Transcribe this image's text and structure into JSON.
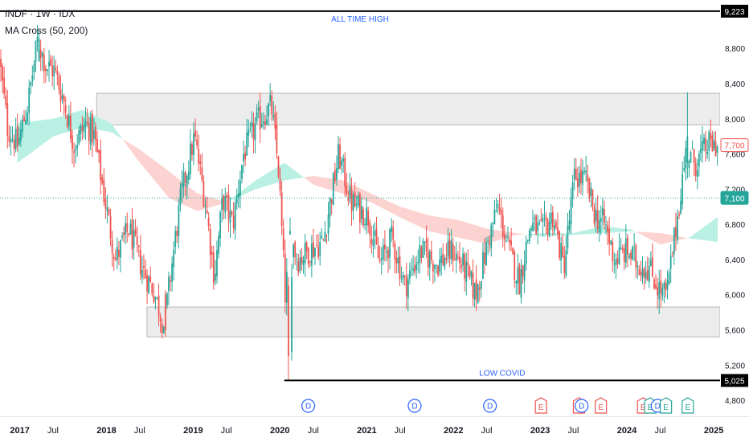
{
  "legend": {
    "symbol_line": "INDF · 1W · IDX",
    "indicator_line": "MA Cross (50, 200)"
  },
  "colors": {
    "up": "#26a69a",
    "down": "#ef5350",
    "ma_bull_fill": "#b9f0e3",
    "ma_bear_fill": "#fcd3d1",
    "zone_fill": "#ececec",
    "annotation_text": "#2962ff",
    "dividend_badge": "#2962ff",
    "earnings_bad": "#ef5350",
    "earnings_good": "#26a69a"
  },
  "chart_data": {
    "type": "candlestick",
    "symbol": "INDF",
    "interval": "1W",
    "exchange": "IDX",
    "ylim": [
      4700,
      9350
    ],
    "yticks": [
      4800,
      5200,
      5600,
      6000,
      6400,
      6800,
      7200,
      7600,
      8000,
      8400,
      8800
    ],
    "ytick_labels": [
      "4,800",
      "5,200",
      "5,600",
      "6,000",
      "6,400",
      "6,800",
      "7,200",
      "7,600",
      "8,000",
      "8,400",
      "8,800"
    ],
    "xlim": [
      "2016-11-20",
      "2025-03-10"
    ],
    "xticks": [
      {
        "label": "2017",
        "date": "2017-01-01"
      },
      {
        "label": "Jul",
        "date": "2017-07-01"
      },
      {
        "label": "2018",
        "date": "2018-01-01"
      },
      {
        "label": "Jul",
        "date": "2018-07-01"
      },
      {
        "label": "2019",
        "date": "2019-01-01"
      },
      {
        "label": "Jul",
        "date": "2019-07-01"
      },
      {
        "label": "2020",
        "date": "2020-01-01"
      },
      {
        "label": "Jul",
        "date": "2020-07-01"
      },
      {
        "label": "2021",
        "date": "2021-01-01"
      },
      {
        "label": "Jul",
        "date": "2021-07-01"
      },
      {
        "label": "2022",
        "date": "2022-01-01"
      },
      {
        "label": "Jul",
        "date": "2022-07-01"
      },
      {
        "label": "2023",
        "date": "2023-01-01"
      },
      {
        "label": "Jul",
        "date": "2023-07-01"
      },
      {
        "label": "2024",
        "date": "2024-01-01"
      },
      {
        "label": "Jul",
        "date": "2024-07-01"
      },
      {
        "label": "2025",
        "date": "2025-01-01"
      }
    ],
    "price_path": [
      [
        "2016-11-20",
        8700
      ],
      [
        "2016-12-25",
        7900
      ],
      [
        "2017-02-05",
        7700
      ],
      [
        "2017-03-20",
        8150
      ],
      [
        "2017-05-01",
        8900
      ],
      [
        "2017-06-05",
        8600
      ],
      [
        "2017-07-10",
        8550
      ],
      [
        "2017-08-20",
        8200
      ],
      [
        "2017-10-01",
        7700
      ],
      [
        "2017-11-20",
        7950
      ],
      [
        "2017-12-25",
        7800
      ],
      [
        "2018-02-10",
        7050
      ],
      [
        "2018-03-25",
        6400
      ],
      [
        "2018-05-20",
        6750
      ],
      [
        "2018-07-15",
        6300
      ],
      [
        "2018-09-01",
        6050
      ],
      [
        "2018-10-15",
        5650
      ],
      [
        "2018-11-20",
        6400
      ],
      [
        "2018-12-25",
        7100
      ],
      [
        "2019-02-20",
        7800
      ],
      [
        "2019-04-10",
        7000
      ],
      [
        "2019-05-15",
        6200
      ],
      [
        "2019-06-20",
        7100
      ],
      [
        "2019-08-01",
        6800
      ],
      [
        "2019-09-15",
        7600
      ],
      [
        "2019-11-10",
        7950
      ],
      [
        "2020-01-10",
        8150
      ],
      [
        "2020-02-10",
        7400
      ],
      [
        "2020-03-10",
        5900
      ],
      [
        "2020-03-25",
        6700
      ],
      [
        "2020-05-01",
        6400
      ],
      [
        "2020-06-15",
        6500
      ],
      [
        "2020-08-15",
        6600
      ],
      [
        "2020-10-20",
        7600
      ],
      [
        "2020-12-10",
        7050
      ],
      [
        "2021-02-20",
        6900
      ],
      [
        "2021-04-10",
        6350
      ],
      [
        "2021-06-01",
        6650
      ],
      [
        "2021-07-25",
        6100
      ],
      [
        "2021-10-01",
        6500
      ],
      [
        "2021-12-10",
        6350
      ],
      [
        "2022-02-10",
        6500
      ],
      [
        "2022-04-01",
        6300
      ],
      [
        "2022-05-20",
        6000
      ],
      [
        "2022-07-10",
        6600
      ],
      [
        "2022-08-20",
        7000
      ],
      [
        "2022-10-01",
        6550
      ],
      [
        "2022-11-20",
        6150
      ],
      [
        "2023-01-05",
        6800
      ],
      [
        "2023-02-20",
        6700
      ],
      [
        "2023-04-10",
        6900
      ],
      [
        "2023-05-25",
        6300
      ],
      [
        "2023-07-10",
        7350
      ],
      [
        "2023-08-25",
        7300
      ],
      [
        "2023-10-05",
        6900
      ],
      [
        "2023-11-15",
        6800
      ],
      [
        "2023-12-25",
        6400
      ],
      [
        "2024-02-15",
        6500
      ],
      [
        "2024-04-01",
        6350
      ],
      [
        "2024-05-20",
        6300
      ],
      [
        "2024-07-01",
        6050
      ],
      [
        "2024-08-01",
        6000
      ],
      [
        "2024-09-15",
        6900
      ],
      [
        "2024-10-20",
        7600
      ],
      [
        "2024-12-01",
        7500
      ],
      [
        "2025-01-20",
        7700
      ],
      [
        "2025-02-28",
        7700
      ]
    ],
    "ma_cross": {
      "name": "MA Cross (50, 200)",
      "fast_period": 50,
      "slow_period": 200,
      "fast_path": [
        [
          "2017-02-01",
          7950
        ],
        [
          "2017-07-01",
          8000
        ],
        [
          "2017-11-01",
          8100
        ],
        [
          "2018-03-01",
          7950
        ],
        [
          "2018-07-01",
          7500
        ],
        [
          "2018-11-01",
          7100
        ],
        [
          "2019-03-01",
          6950
        ],
        [
          "2019-07-01",
          7050
        ],
        [
          "2019-11-01",
          7300
        ],
        [
          "2020-03-01",
          7500
        ],
        [
          "2020-07-01",
          7250
        ],
        [
          "2020-11-01",
          7150
        ],
        [
          "2021-03-01",
          7050
        ],
        [
          "2021-07-01",
          6880
        ],
        [
          "2021-11-01",
          6720
        ],
        [
          "2022-03-01",
          6650
        ],
        [
          "2022-07-01",
          6580
        ],
        [
          "2022-11-01",
          6680
        ],
        [
          "2023-03-01",
          6700
        ],
        [
          "2023-07-01",
          6700
        ],
        [
          "2023-11-01",
          6780
        ],
        [
          "2024-03-01",
          6740
        ],
        [
          "2024-07-01",
          6570
        ],
        [
          "2024-11-01",
          6650
        ],
        [
          "2025-02-25",
          6880
        ]
      ],
      "slow_path": [
        [
          "2017-02-01",
          7500
        ],
        [
          "2017-07-01",
          7800
        ],
        [
          "2017-11-01",
          7900
        ],
        [
          "2018-03-01",
          7850
        ],
        [
          "2018-07-01",
          7650
        ],
        [
          "2018-11-01",
          7400
        ],
        [
          "2019-03-01",
          7150
        ],
        [
          "2019-07-01",
          7050
        ],
        [
          "2019-11-01",
          7200
        ],
        [
          "2020-03-01",
          7300
        ],
        [
          "2020-07-01",
          7350
        ],
        [
          "2020-11-01",
          7300
        ],
        [
          "2021-03-01",
          7150
        ],
        [
          "2021-07-01",
          7000
        ],
        [
          "2021-11-01",
          6900
        ],
        [
          "2022-03-01",
          6850
        ],
        [
          "2022-07-01",
          6750
        ],
        [
          "2022-11-01",
          6700
        ],
        [
          "2023-03-01",
          6660
        ],
        [
          "2023-07-01",
          6680
        ],
        [
          "2023-11-01",
          6700
        ],
        [
          "2024-03-01",
          6720
        ],
        [
          "2024-07-01",
          6700
        ],
        [
          "2024-11-01",
          6640
        ],
        [
          "2025-02-25",
          6600
        ]
      ]
    },
    "horizontal_lines": [
      {
        "name": "all-time-high",
        "value": 9223,
        "label": "ALL TIME HIGH",
        "price_label": "9,223",
        "x_from": "2016-11-20"
      },
      {
        "name": "low-covid",
        "value": 5025,
        "label": "LOW COVID",
        "price_label": "5,025",
        "x_from": "2020-03-01"
      }
    ],
    "zones": [
      {
        "name": "resistance-zone",
        "from": 7930,
        "to": 8290,
        "x_from": "2018-01-01"
      },
      {
        "name": "support-zone",
        "from": 5520,
        "to": 5860,
        "x_from": "2018-08-01"
      }
    ],
    "price_markers": [
      {
        "name": "last-price",
        "value": 7700,
        "label": "7,700",
        "style": "outline-red"
      },
      {
        "name": "reference-price",
        "value": 7100,
        "label": "7,100",
        "style": "solid-teal",
        "dotted_line": true
      }
    ],
    "events": [
      {
        "type": "dividend",
        "label": "D",
        "date": "2020-06-10"
      },
      {
        "type": "dividend",
        "label": "D",
        "date": "2021-09-01"
      },
      {
        "type": "dividend",
        "label": "D",
        "date": "2022-07-15"
      },
      {
        "type": "earnings",
        "label": "E",
        "date": "2023-02-15",
        "result": "miss"
      },
      {
        "type": "earnings",
        "label": "E",
        "date": "2023-07-25",
        "result": "miss"
      },
      {
        "type": "dividend",
        "label": "D",
        "date": "2023-08-05"
      },
      {
        "type": "earnings",
        "label": "E",
        "date": "2023-10-25",
        "result": "miss"
      },
      {
        "type": "earnings",
        "label": "E",
        "date": "2024-04-20",
        "result": "miss"
      },
      {
        "type": "earnings",
        "label": "E",
        "date": "2024-05-20",
        "result": "beat"
      },
      {
        "type": "dividend",
        "label": "D",
        "date": "2024-06-20"
      },
      {
        "type": "earnings",
        "label": "E",
        "date": "2024-07-25",
        "result": "beat"
      },
      {
        "type": "earnings",
        "label": "E",
        "date": "2024-10-25",
        "result": "beat"
      }
    ]
  }
}
